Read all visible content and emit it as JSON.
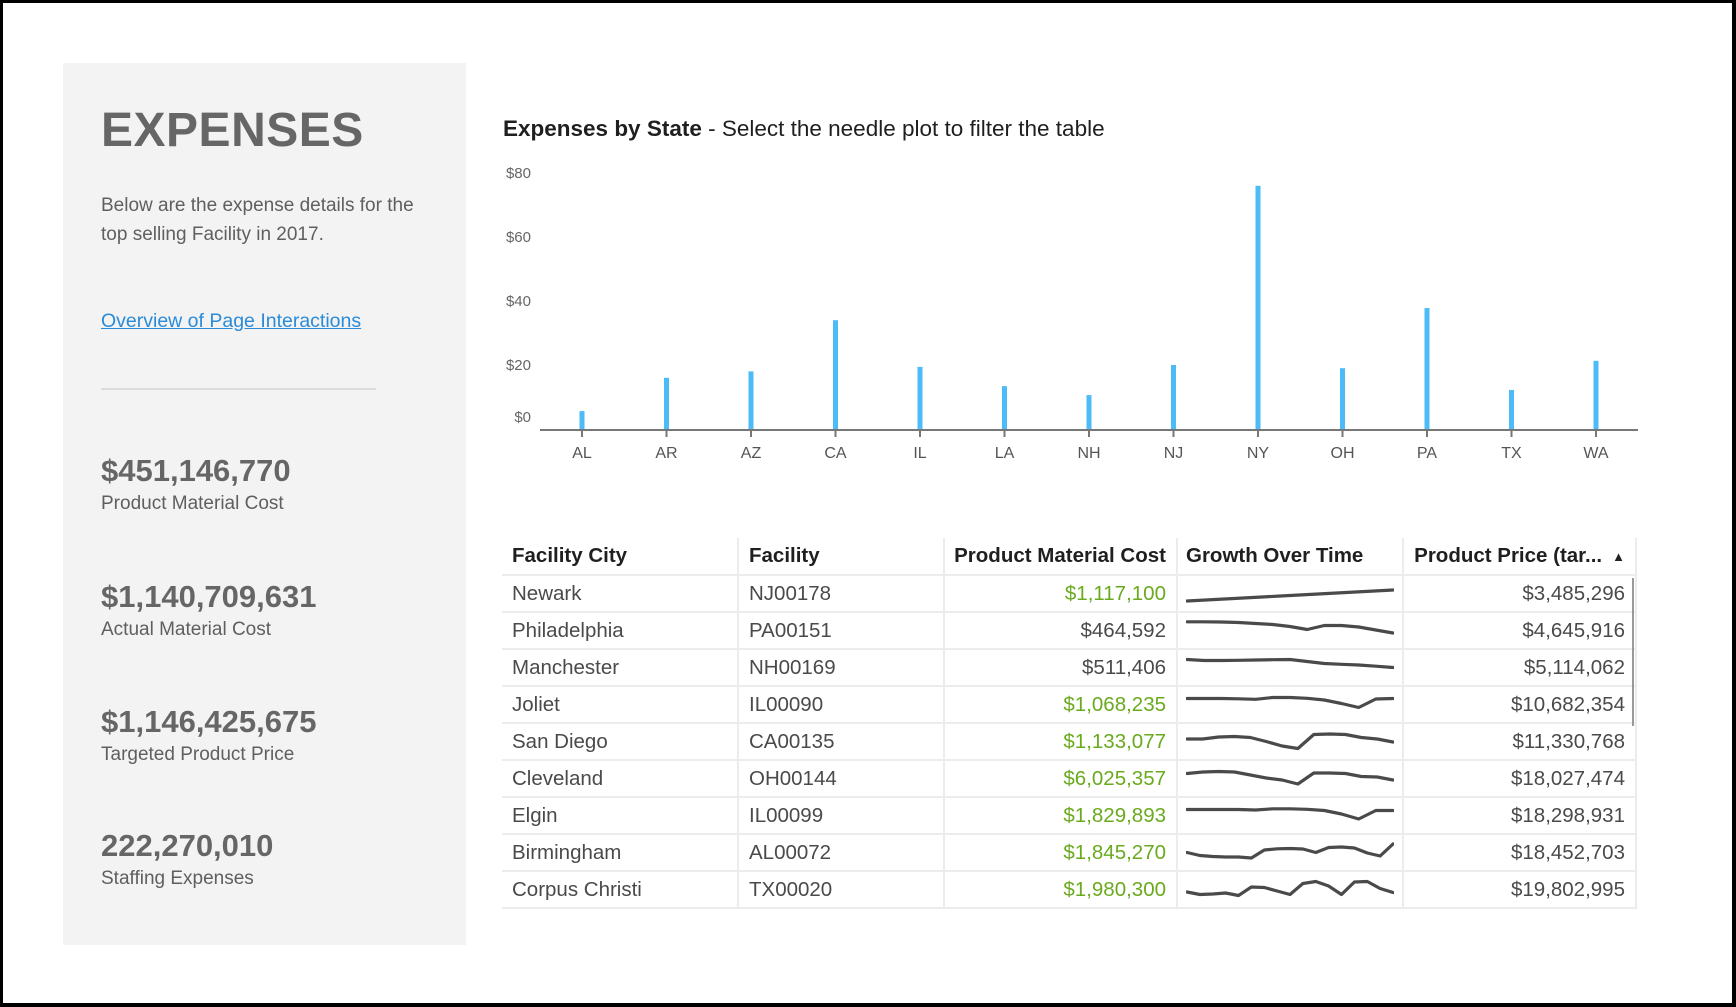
{
  "sidebar": {
    "title": "EXPENSES",
    "description": "Below are the expense details for the top selling Facility in 2017.",
    "link_label": "Overview of Page Interactions",
    "kpis": [
      {
        "value": "$451,146,770",
        "label": "Product Material Cost"
      },
      {
        "value": "$1,140,709,631",
        "label": "Actual Material Cost"
      },
      {
        "value": "$1,146,425,675",
        "label": "Targeted Product Price"
      },
      {
        "value": "222,270,010",
        "label": "Staffing Expenses"
      }
    ]
  },
  "chart_header": {
    "title_bold": "Expenses by State",
    "title_rest": " - Select the needle plot to filter the table"
  },
  "chart_data": {
    "type": "bar",
    "subtype": "needle",
    "title": "Expenses by State",
    "xlabel": "",
    "ylabel": "",
    "categories": [
      "AL",
      "AR",
      "AZ",
      "CA",
      "IL",
      "LA",
      "NH",
      "NJ",
      "NY",
      "OH",
      "PA",
      "TX",
      "WA"
    ],
    "values": [
      5.6,
      16,
      18,
      34,
      19.4,
      13.4,
      10.6,
      20,
      76,
      19,
      37.8,
      12.2,
      21.3
    ],
    "yticks": [
      0,
      20,
      40,
      60,
      80
    ],
    "ytick_labels": [
      "$0",
      "$20",
      "$40",
      "$60",
      "$80"
    ],
    "ylim": [
      0,
      80
    ],
    "grid": false,
    "legend": "none",
    "color": "#4dbbf7"
  },
  "table": {
    "columns": [
      "Facility City",
      "Facility",
      "Product Material Cost",
      "Growth Over Time",
      "Product Price (tar..."
    ],
    "sort_icon": "sort-ascending-icon",
    "sort_glyph": "▲",
    "positive_color": "#6aaa1e",
    "rows": [
      {
        "city": "Newark",
        "facility": "NJ00178",
        "cost": "$1,117,100",
        "highlight": true,
        "price": "$3,485,296",
        "growth": [
          0.2,
          0.24,
          0.28,
          0.32,
          0.36,
          0.4,
          0.44,
          0.48,
          0.52,
          0.56,
          0.6,
          0.64
        ]
      },
      {
        "city": "Philadelphia",
        "facility": "PA00151",
        "cost": "$464,592",
        "highlight": false,
        "price": "$4,645,916",
        "growth": [
          0.85,
          0.85,
          0.84,
          0.82,
          0.78,
          0.74,
          0.66,
          0.54,
          0.7,
          0.7,
          0.64,
          0.52,
          0.4
        ]
      },
      {
        "city": "Manchester",
        "facility": "NH00169",
        "cost": "$511,406",
        "highlight": false,
        "price": "$5,114,062",
        "growth": [
          0.82,
          0.78,
          0.78,
          0.79,
          0.8,
          0.81,
          0.82,
          0.74,
          0.66,
          0.63,
          0.6,
          0.55,
          0.5
        ]
      },
      {
        "city": "Joliet",
        "facility": "IL00090",
        "cost": "$1,068,235",
        "highlight": true,
        "price": "$10,682,354",
        "growth": [
          0.74,
          0.74,
          0.74,
          0.73,
          0.71,
          0.78,
          0.78,
          0.75,
          0.68,
          0.54,
          0.38,
          0.72,
          0.74
        ]
      },
      {
        "city": "San Diego",
        "facility": "CA00135",
        "cost": "$1,133,077",
        "highlight": true,
        "price": "$11,330,768",
        "growth": [
          0.6,
          0.6,
          0.68,
          0.7,
          0.66,
          0.5,
          0.32,
          0.22,
          0.78,
          0.8,
          0.78,
          0.66,
          0.6,
          0.48
        ]
      },
      {
        "city": "Cleveland",
        "facility": "OH00144",
        "cost": "$6,025,357",
        "highlight": true,
        "price": "$18,027,474",
        "growth": [
          0.7,
          0.76,
          0.78,
          0.76,
          0.64,
          0.52,
          0.44,
          0.28,
          0.72,
          0.72,
          0.7,
          0.58,
          0.56,
          0.44
        ]
      },
      {
        "city": "Elgin",
        "facility": "IL00099",
        "cost": "$1,829,893",
        "highlight": true,
        "price": "$18,298,931",
        "growth": [
          0.74,
          0.74,
          0.74,
          0.74,
          0.72,
          0.77,
          0.77,
          0.75,
          0.7,
          0.56,
          0.36,
          0.7,
          0.7
        ]
      },
      {
        "city": "Birmingham",
        "facility": "AL00072",
        "cost": "$1,845,270",
        "highlight": true,
        "price": "$18,452,703",
        "growth": [
          0.5,
          0.38,
          0.34,
          0.32,
          0.32,
          0.28,
          0.6,
          0.65,
          0.66,
          0.64,
          0.5,
          0.7,
          0.72,
          0.68,
          0.48,
          0.36,
          0.84
        ]
      },
      {
        "city": "Corpus Christi",
        "facility": "TX00020",
        "cost": "$1,980,300",
        "highlight": true,
        "price": "$19,802,995",
        "growth": [
          0.4,
          0.3,
          0.32,
          0.36,
          0.26,
          0.6,
          0.58,
          0.44,
          0.3,
          0.74,
          0.82,
          0.64,
          0.3,
          0.8,
          0.82,
          0.54,
          0.38
        ]
      }
    ]
  }
}
